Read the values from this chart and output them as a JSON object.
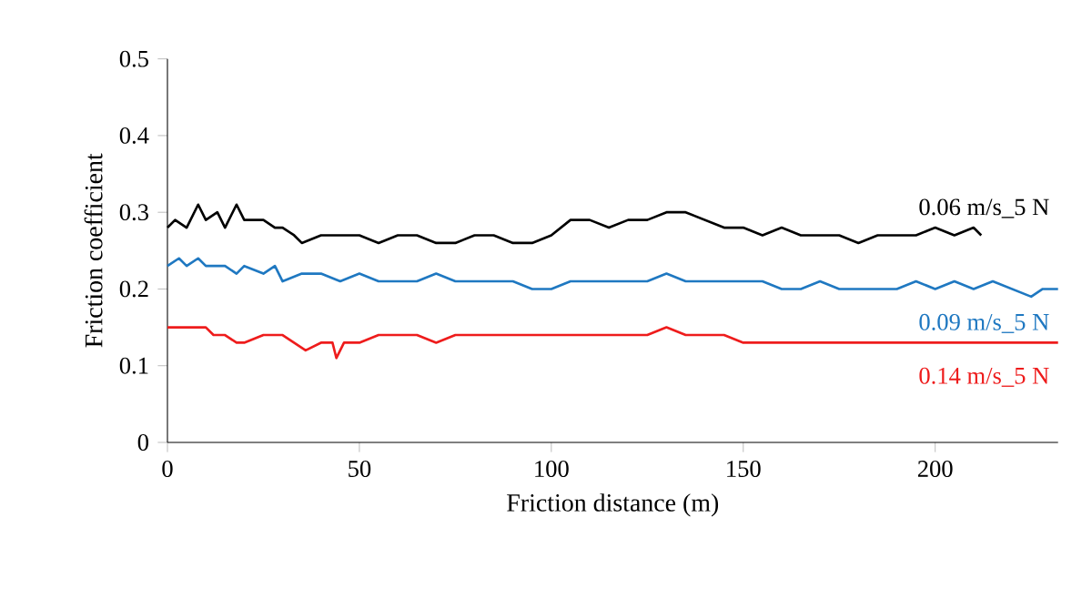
{
  "chart_data": {
    "type": "line",
    "xlabel": "Friction distance (m)",
    "ylabel": "Friction coefficient",
    "xlim": [
      0,
      232
    ],
    "xticks": [
      0,
      50,
      100,
      150,
      200
    ],
    "ylim": [
      0,
      0.5
    ],
    "yticks": [
      0,
      0.1,
      0.2,
      0.3,
      0.4,
      0.5
    ],
    "grid": false,
    "legend": false,
    "marker": "none",
    "line_style": "solid",
    "series": [
      {
        "name": "0.06 m/s_5 N",
        "color": "#000000",
        "x": [
          0,
          2,
          5,
          8,
          10,
          13,
          15,
          18,
          20,
          25,
          28,
          30,
          33,
          35,
          40,
          45,
          50,
          55,
          60,
          65,
          70,
          75,
          80,
          85,
          90,
          95,
          100,
          105,
          110,
          115,
          120,
          125,
          130,
          135,
          140,
          145,
          150,
          155,
          160,
          165,
          170,
          175,
          180,
          185,
          190,
          195,
          200,
          205,
          210,
          212
        ],
        "values": [
          0.28,
          0.29,
          0.28,
          0.31,
          0.29,
          0.3,
          0.28,
          0.31,
          0.29,
          0.29,
          0.28,
          0.28,
          0.27,
          0.26,
          0.27,
          0.27,
          0.27,
          0.26,
          0.27,
          0.27,
          0.26,
          0.26,
          0.27,
          0.27,
          0.26,
          0.26,
          0.27,
          0.29,
          0.29,
          0.28,
          0.29,
          0.29,
          0.3,
          0.3,
          0.29,
          0.28,
          0.28,
          0.27,
          0.28,
          0.27,
          0.27,
          0.27,
          0.26,
          0.27,
          0.27,
          0.27,
          0.28,
          0.27,
          0.28,
          0.27
        ]
      },
      {
        "name": "0.09 m/s_5 N",
        "color": "#1f78c1",
        "x": [
          0,
          3,
          5,
          8,
          10,
          15,
          18,
          20,
          25,
          28,
          30,
          35,
          40,
          45,
          50,
          55,
          60,
          65,
          70,
          75,
          80,
          85,
          90,
          95,
          100,
          105,
          110,
          115,
          120,
          125,
          130,
          135,
          140,
          145,
          150,
          155,
          160,
          165,
          170,
          175,
          180,
          185,
          190,
          195,
          200,
          205,
          210,
          215,
          220,
          225,
          228,
          232
        ],
        "values": [
          0.23,
          0.24,
          0.23,
          0.24,
          0.23,
          0.23,
          0.22,
          0.23,
          0.22,
          0.23,
          0.21,
          0.22,
          0.22,
          0.21,
          0.22,
          0.21,
          0.21,
          0.21,
          0.22,
          0.21,
          0.21,
          0.21,
          0.21,
          0.2,
          0.2,
          0.21,
          0.21,
          0.21,
          0.21,
          0.21,
          0.22,
          0.21,
          0.21,
          0.21,
          0.21,
          0.21,
          0.2,
          0.2,
          0.21,
          0.2,
          0.2,
          0.2,
          0.2,
          0.21,
          0.2,
          0.21,
          0.2,
          0.21,
          0.2,
          0.19,
          0.2,
          0.2
        ]
      },
      {
        "name": "0.14 m/s_5 N",
        "color": "#ee1c1c",
        "x": [
          0,
          5,
          10,
          12,
          15,
          18,
          20,
          25,
          30,
          33,
          36,
          40,
          43,
          44,
          46,
          50,
          55,
          60,
          65,
          70,
          75,
          80,
          85,
          90,
          95,
          100,
          105,
          110,
          115,
          120,
          125,
          130,
          135,
          140,
          145,
          150,
          155,
          160,
          165,
          170,
          175,
          180,
          185,
          190,
          195,
          200,
          205,
          210,
          215,
          220,
          225,
          232
        ],
        "values": [
          0.15,
          0.15,
          0.15,
          0.14,
          0.14,
          0.13,
          0.13,
          0.14,
          0.14,
          0.13,
          0.12,
          0.13,
          0.13,
          0.11,
          0.13,
          0.13,
          0.14,
          0.14,
          0.14,
          0.13,
          0.14,
          0.14,
          0.14,
          0.14,
          0.14,
          0.14,
          0.14,
          0.14,
          0.14,
          0.14,
          0.14,
          0.15,
          0.14,
          0.14,
          0.14,
          0.13,
          0.13,
          0.13,
          0.13,
          0.13,
          0.13,
          0.13,
          0.13,
          0.13,
          0.13,
          0.13,
          0.13,
          0.13,
          0.13,
          0.13,
          0.13,
          0.13
        ]
      }
    ]
  }
}
